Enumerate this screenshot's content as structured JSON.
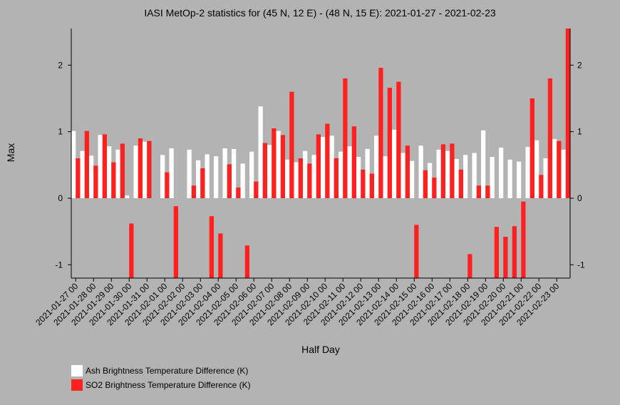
{
  "chart_data": {
    "type": "bar",
    "title": "IASI MetOp-2 statistics for (45 N, 12 E) - (48 N, 15 E): 2021-01-27 - 2021-02-23",
    "xlabel": "Half Day",
    "ylabel": "Max",
    "ylim": [
      -1.2,
      2.55
    ],
    "yticks": [
      -1,
      0,
      1,
      2
    ],
    "grid": false,
    "legend_placement": "bottom-left",
    "categories": [
      "2021-01-27 00",
      "2021-01-27 12",
      "2021-01-28 00",
      "2021-01-28 12",
      "2021-01-29 00",
      "2021-01-29 12",
      "2021-01-30 00",
      "2021-01-30 12",
      "2021-01-31 00",
      "2021-01-31 12",
      "2021-02-01 00",
      "2021-02-01 12",
      "2021-02-02 00",
      "2021-02-02 12",
      "2021-02-03 00",
      "2021-02-03 12",
      "2021-02-04 00",
      "2021-02-04 12",
      "2021-02-05 00",
      "2021-02-05 12",
      "2021-02-06 00",
      "2021-02-06 12",
      "2021-02-07 00",
      "2021-02-07 12",
      "2021-02-08 00",
      "2021-02-08 12",
      "2021-02-09 00",
      "2021-02-09 12",
      "2021-02-10 00",
      "2021-02-10 12",
      "2021-02-11 00",
      "2021-02-11 12",
      "2021-02-12 00",
      "2021-02-12 12",
      "2021-02-13 00",
      "2021-02-13 12",
      "2021-02-14 00",
      "2021-02-14 12",
      "2021-02-15 00",
      "2021-02-15 12",
      "2021-02-16 00",
      "2021-02-16 12",
      "2021-02-17 00",
      "2021-02-17 12",
      "2021-02-18 00",
      "2021-02-18 12",
      "2021-02-19 00",
      "2021-02-19 12",
      "2021-02-20 00",
      "2021-02-20 12",
      "2021-02-21 00",
      "2021-02-21 12",
      "2021-02-22 00",
      "2021-02-22 12",
      "2021-02-23 00",
      "2021-02-23 12"
    ],
    "tick_labels": [
      "2021-01-27 00",
      "2021-01-28 00",
      "2021-01-29 00",
      "2021-01-30 00",
      "2021-01-31 00",
      "2021-02-01 00",
      "2021-02-02 00",
      "2021-02-03 00",
      "2021-02-04 00",
      "2021-02-05 00",
      "2021-02-06 00",
      "2021-02-07 00",
      "2021-02-08 00",
      "2021-02-09 00",
      "2021-02-10 00",
      "2021-02-11 00",
      "2021-02-12 00",
      "2021-02-13 00",
      "2021-02-14 00",
      "2021-02-15 00",
      "2021-02-16 00",
      "2021-02-17 00",
      "2021-02-18 00",
      "2021-02-19 00",
      "2021-02-20 00",
      "2021-02-21 00",
      "2021-02-22 00",
      "2021-02-23 00"
    ],
    "series": [
      {
        "name": "Ash Brightness Temperature Difference (K)",
        "color": "#ffffff",
        "values": [
          1.01,
          0.71,
          0.64,
          0.95,
          0.78,
          0.73,
          0.04,
          0.79,
          0.85,
          null,
          0.65,
          0.75,
          null,
          0.73,
          0.57,
          0.66,
          0.63,
          0.75,
          0.74,
          0.52,
          0.7,
          1.38,
          0.8,
          1.01,
          0.58,
          0.54,
          0.71,
          0.65,
          0.92,
          0.94,
          0.7,
          0.78,
          0.62,
          0.74,
          0.94,
          0.63,
          1.03,
          0.68,
          0.56,
          0.79,
          0.53,
          0.73,
          0.71,
          0.59,
          0.65,
          0.68,
          1.02,
          0.62,
          0.76,
          0.58,
          0.55,
          0.77,
          0.87,
          0.6,
          0.89,
          0.73
        ]
      },
      {
        "name": "SO2 Brightness Temperature Difference (K)",
        "color": "#ff2020",
        "values": [
          0.6,
          1.01,
          0.49,
          0.96,
          0.54,
          0.82,
          -0.38,
          0.9,
          0.86,
          null,
          0.39,
          -0.12,
          null,
          0.19,
          0.45,
          -0.27,
          -0.53,
          0.51,
          0.16,
          -0.71,
          0.25,
          0.83,
          1.05,
          0.95,
          1.6,
          0.6,
          0.52,
          0.96,
          1.12,
          0.6,
          1.8,
          1.08,
          0.43,
          0.37,
          1.96,
          1.66,
          1.75,
          0.79,
          -0.4,
          0.42,
          0.31,
          0.81,
          0.82,
          0.43,
          -0.84,
          0.19,
          0.19,
          -0.43,
          -0.58,
          -0.42,
          -0.05,
          1.5,
          0.35,
          1.8,
          0.86,
          2.55
        ]
      }
    ]
  }
}
